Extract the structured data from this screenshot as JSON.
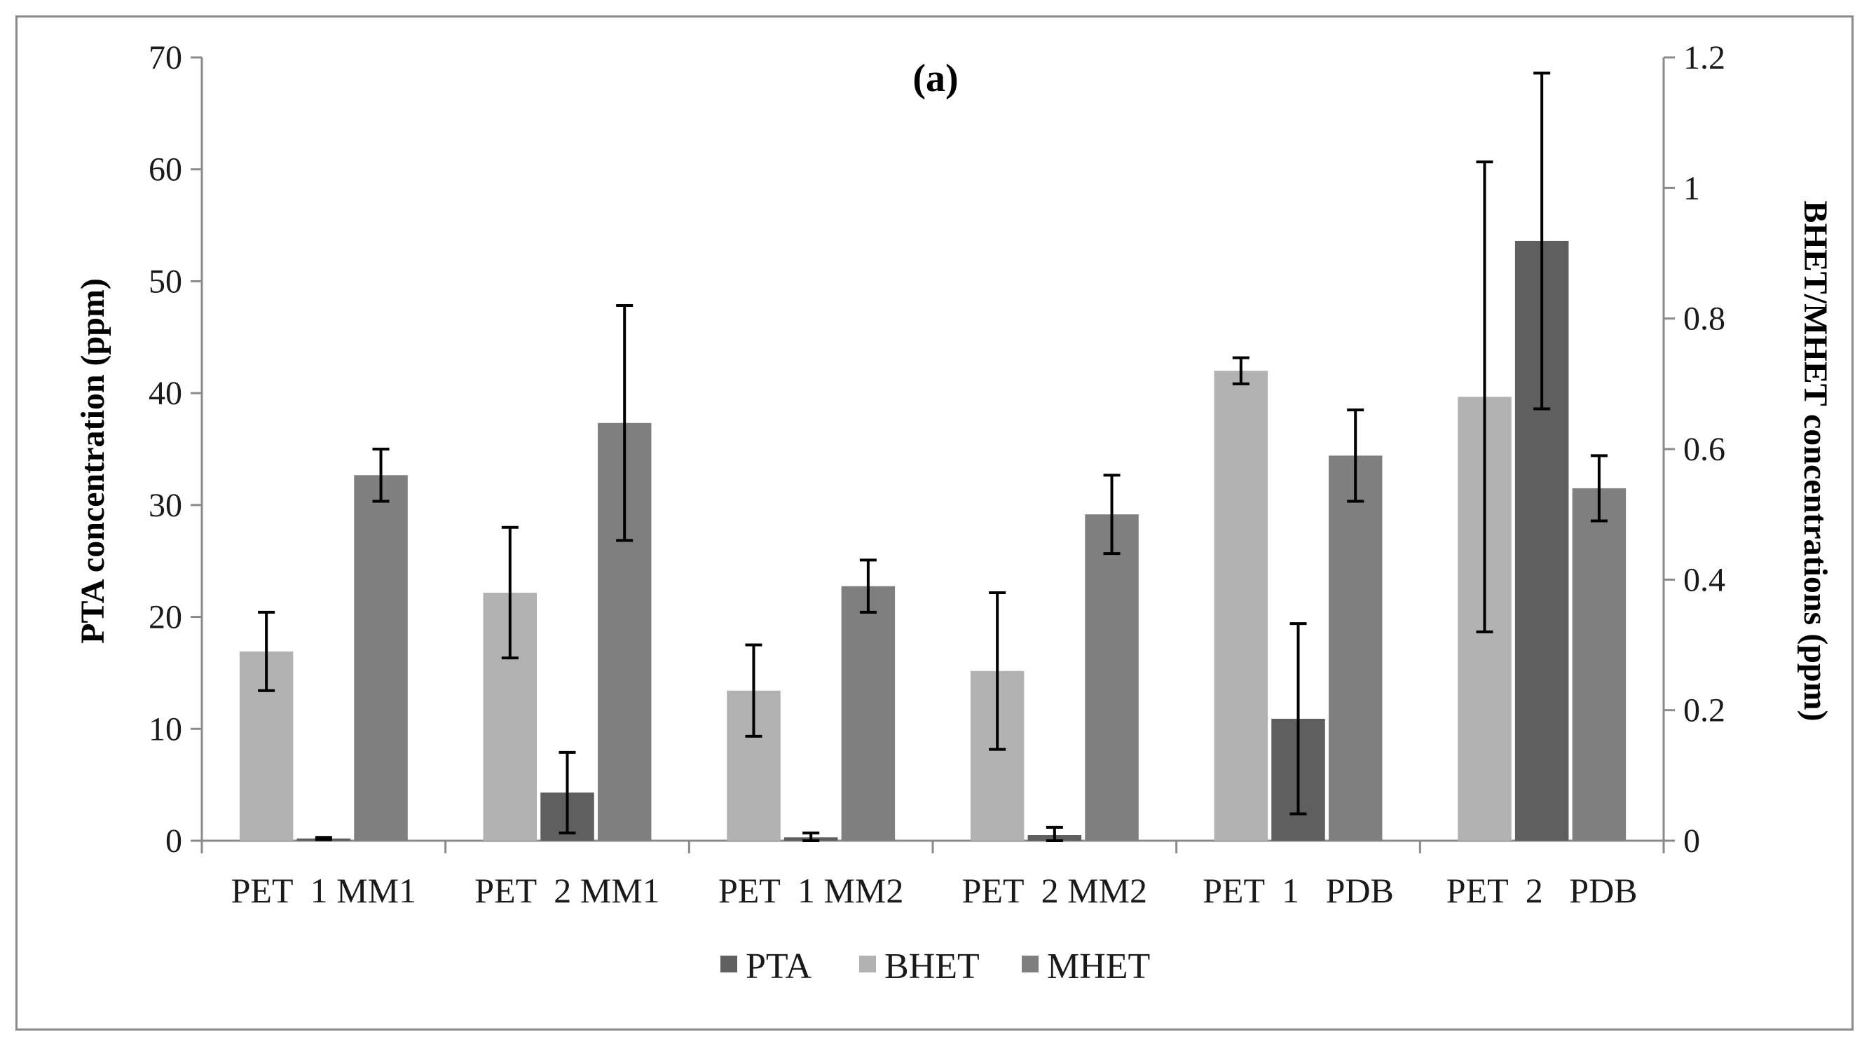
{
  "chart_data": {
    "type": "bar",
    "title": "(a)",
    "categories": [
      "PET  1 MM1",
      "PET  2 MM1",
      "PET  1 MM2",
      "PET  2 MM2",
      "PET  1   PDB",
      "PET  2   PDB"
    ],
    "ylabel": "PTA concentration (ppm)",
    "y2label": "BHET/MHET concentrations (ppm)",
    "ylim": [
      0,
      70
    ],
    "y2lim": [
      0,
      1.2
    ],
    "yticks": [
      "0",
      "10",
      "20",
      "30",
      "40",
      "50",
      "60",
      "70"
    ],
    "y2ticks": [
      "0",
      "0.2",
      "0.4",
      "0.6",
      "0.8",
      "1",
      "1.2"
    ],
    "legend_position": "bottom",
    "colors": {
      "PTA": "#5f5f5f",
      "BHET": "#b2b2b2",
      "MHET": "#7f7f7f",
      "axis": "#8a8a8a",
      "error": "#000000"
    },
    "series": [
      {
        "name": "BHET",
        "axis": "right",
        "values": [
          0.29,
          0.38,
          0.23,
          0.26,
          0.72,
          0.68
        ],
        "errors": [
          0.06,
          0.1,
          0.07,
          0.12,
          0.02,
          0.36
        ]
      },
      {
        "name": "PTA",
        "axis": "left",
        "values": [
          0.2,
          4.3,
          0.3,
          0.5,
          10.9,
          53.6
        ],
        "errors": [
          0.1,
          3.6,
          0.4,
          0.7,
          8.5,
          15.0
        ]
      },
      {
        "name": "MHET",
        "axis": "right",
        "values": [
          0.56,
          0.64,
          0.39,
          0.5,
          0.59,
          0.54
        ],
        "errors": [
          0.04,
          0.18,
          0.04,
          0.06,
          0.07,
          0.05
        ]
      }
    ],
    "legend": [
      "PTA",
      "BHET",
      "MHET"
    ]
  }
}
